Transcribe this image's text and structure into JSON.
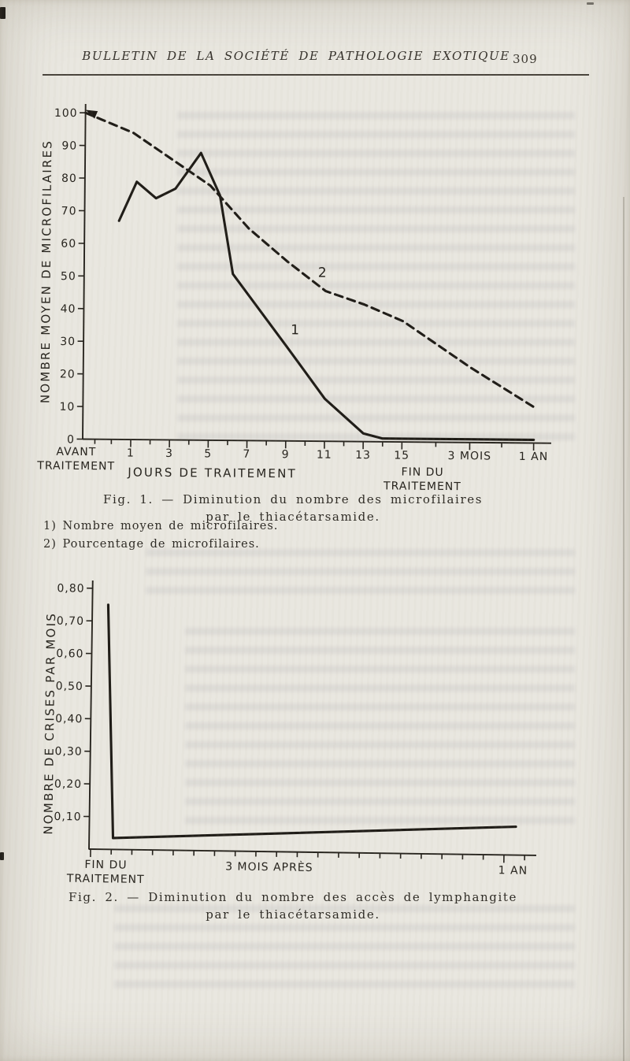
{
  "header": {
    "title": "BULLETIN DE LA SOCIÉTÉ DE PATHOLOGIE EXOTIQUE",
    "page_number": "309"
  },
  "fig1": {
    "caption_line1": "Fig. 1. — Diminution du nombre des microfilaires",
    "caption_line2": "par le thiacétarsamide.",
    "legend": [
      "1) Nombre moyen de microfilaires.",
      "2) Pourcentage de microfilaires."
    ]
  },
  "fig2": {
    "caption_line1": "Fig. 2. — Diminution du nombre des accès de lymphangite",
    "caption_line2": "par le thiacétarsamide."
  },
  "ink_color": "#1f1c17",
  "paper_color": "#e9e7e0",
  "chart_data": [
    {
      "type": "line",
      "figure": "Fig. 1",
      "title": "Diminution du nombre des microfilaires par le thiacétarsamide",
      "ylabel": "NOMBRE MOYEN DE MICROFILAIRES",
      "xlabel": "JOURS DE TRAITEMENT",
      "x_start_label_lines": [
        "AVANT",
        "TRAITEMENT"
      ],
      "x_end_label_lines": [
        "FIN DU",
        "TRAITEMENT"
      ],
      "ylim": [
        0,
        100
      ],
      "y_ticks": [
        0,
        10,
        20,
        30,
        40,
        50,
        60,
        70,
        80,
        90,
        100
      ],
      "x_ticks": [
        {
          "u": 1,
          "label": "1"
        },
        {
          "u": 3,
          "label": "3"
        },
        {
          "u": 5,
          "label": "5"
        },
        {
          "u": 7,
          "label": "7"
        },
        {
          "u": 9,
          "label": "9"
        },
        {
          "u": 11,
          "label": "11"
        },
        {
          "u": 13,
          "label": "13"
        },
        {
          "u": 15,
          "label": "15"
        },
        {
          "u": 18.5,
          "label": "3 MOIS"
        },
        {
          "u": 21.8,
          "label": "1 AN"
        }
      ],
      "x_minor_u": [
        -0.85,
        0,
        2,
        4,
        6,
        8,
        10,
        12,
        14,
        16.75,
        20.15
      ],
      "x_unit_note": "jours de traitement (0 = avant traitement, puis 3 mois et 1 an)",
      "series": [
        {
          "name": "1",
          "legend": "Nombre moyen de microfilaires",
          "style": "solid",
          "points": [
            [
              0.3,
              67
            ],
            [
              1.2,
              79
            ],
            [
              2.2,
              74
            ],
            [
              3.2,
              77
            ],
            [
              4.5,
              88
            ],
            [
              5.5,
              75
            ],
            [
              6.2,
              51
            ],
            [
              9,
              29
            ],
            [
              11,
              13
            ],
            [
              13,
              2.5
            ],
            [
              14,
              1
            ],
            [
              18.5,
              1
            ],
            [
              21.8,
              1
            ]
          ]
        },
        {
          "name": "2",
          "legend": "Pourcentage de microfilaires",
          "style": "dashed",
          "starts_with_arrow_at_axis": true,
          "points": [
            [
              -1.48,
              100
            ],
            [
              1,
              94
            ],
            [
              3,
              86
            ],
            [
              5,
              78
            ],
            [
              7,
              65
            ],
            [
              9,
              55
            ],
            [
              11,
              46
            ],
            [
              13,
              42
            ],
            [
              15,
              37
            ],
            [
              18.5,
              23
            ],
            [
              21.8,
              11
            ]
          ]
        }
      ]
    },
    {
      "type": "line",
      "figure": "Fig. 2",
      "title": "Diminution du nombre des accès de lymphangite par le thiacétarsamide",
      "ylabel": "NOMBRE DE CRISES PAR MOIS",
      "ylim": [
        0,
        0.85
      ],
      "y_ticks": [
        {
          "v": 0.8,
          "label": "0,80"
        },
        {
          "v": 0.7,
          "label": "0,70"
        },
        {
          "v": 0.6,
          "label": "0,60"
        },
        {
          "v": 0.5,
          "label": "0,50"
        },
        {
          "v": 0.4,
          "label": "0,40"
        },
        {
          "v": 0.3,
          "label": "0,30"
        },
        {
          "v": 0.2,
          "label": "0,20"
        },
        {
          "v": 0.1,
          "label": "0,10"
        }
      ],
      "x_ticks": [
        {
          "f": 0.035,
          "lines": [
            "FIN DU",
            "TRAITEMENT"
          ]
        },
        {
          "f": 0.402,
          "lines": [
            "3 MOIS APRÈS"
          ]
        },
        {
          "f": 0.95,
          "lines": [
            "1 AN"
          ]
        }
      ],
      "x_minor_tick_count": 22,
      "series": [
        {
          "name": "accès de lymphangite",
          "style": "solid",
          "points_f_v": [
            [
              0.032,
              0.75
            ],
            [
              0.05,
              0.035
            ],
            [
              0.402,
              0.055
            ],
            [
              0.955,
              0.087
            ]
          ]
        }
      ]
    }
  ]
}
